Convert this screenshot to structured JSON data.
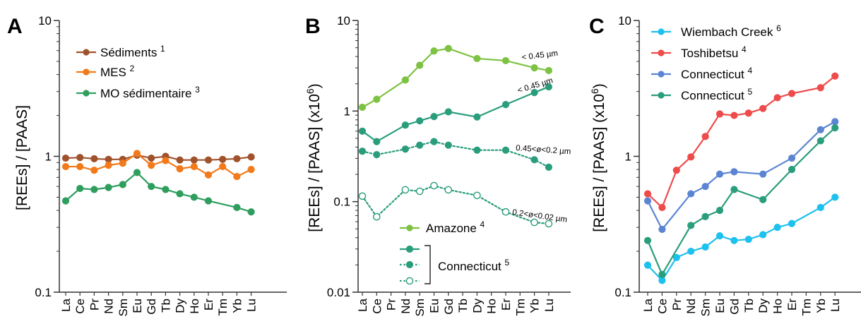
{
  "chart_data": [
    {
      "panel": "A",
      "type": "line",
      "ylabel": "[REEs] / [PAAS]",
      "yscale": "log",
      "ylim": [
        0.1,
        10
      ],
      "yticks": [
        "0.1",
        "1",
        "10"
      ],
      "categories": [
        "La",
        "Ce",
        "Pr",
        "Nd",
        "Sm",
        "Eu",
        "Gd",
        "Tb",
        "Dy",
        "Ho",
        "Er",
        "Tm",
        "Yb",
        "Lu"
      ],
      "legend_position": "top-left",
      "series": [
        {
          "name": "Sédiments",
          "sup": "1",
          "color": "#a0522d",
          "style": "solid-filled",
          "values": [
            0.97,
            0.98,
            0.96,
            0.95,
            0.95,
            1.02,
            0.97,
            1.0,
            0.94,
            0.94,
            0.94,
            0.95,
            0.96,
            0.99
          ]
        },
        {
          "name": "MES",
          "sup": "2",
          "color": "#f27a1a",
          "style": "solid-filled",
          "values": [
            0.84,
            0.84,
            0.79,
            0.86,
            0.89,
            1.05,
            0.86,
            0.93,
            0.81,
            0.84,
            0.73,
            0.84,
            0.71,
            0.8
          ]
        },
        {
          "name": "MO sédimentaire",
          "sup": "3",
          "color": "#2e9e5e",
          "style": "solid-filled",
          "values": [
            0.47,
            0.58,
            0.57,
            0.59,
            0.62,
            0.76,
            0.6,
            0.57,
            0.53,
            0.5,
            0.47,
            null,
            0.42,
            0.39
          ]
        }
      ]
    },
    {
      "panel": "B",
      "type": "line",
      "ylabel": "[REEs] / [PAAS] (x10",
      "ylabel_sup": "6",
      "ylabel_end": ")",
      "yscale": "log",
      "ylim": [
        0.01,
        10
      ],
      "yticks": [
        "0.01",
        "0.1",
        "1",
        "10"
      ],
      "categories": [
        "La",
        "Ce",
        "Pr",
        "Nd",
        "Sm",
        "Eu",
        "Gd",
        "Tb",
        "Dy",
        "Ho",
        "Er",
        "Tm",
        "Yb",
        "Lu"
      ],
      "series": [
        {
          "name": "Amazone",
          "sup": "4",
          "color": "#7dc242",
          "style": "solid-filled",
          "note": "< 0.45 µm",
          "values": [
            1.1,
            1.35,
            null,
            2.2,
            3.2,
            4.6,
            4.9,
            null,
            3.8,
            null,
            3.6,
            null,
            3.0,
            2.8
          ]
        },
        {
          "name": "Connecticut",
          "sup": "5",
          "color": "#2a9d7c",
          "style": "solid-filled",
          "note": "< 0.45 µm",
          "values": [
            0.6,
            0.46,
            null,
            0.7,
            0.78,
            0.87,
            0.98,
            null,
            0.86,
            null,
            1.18,
            null,
            1.6,
            1.85
          ]
        },
        {
          "name": "Connecticut",
          "sup": "5",
          "color": "#2a9d7c",
          "style": "dotted-filled",
          "note": "0.45<ø<0.2 µm",
          "values": [
            0.36,
            0.33,
            null,
            0.38,
            0.42,
            0.46,
            0.42,
            null,
            0.37,
            null,
            0.37,
            null,
            0.29,
            0.24
          ]
        },
        {
          "name": "Connecticut",
          "sup": "5",
          "color": "#2a9d7c",
          "style": "dotted-open",
          "note": "0.2<ø<0.02 µm",
          "values": [
            0.115,
            0.068,
            null,
            0.135,
            0.13,
            0.15,
            0.135,
            null,
            0.117,
            null,
            0.077,
            null,
            0.059,
            0.057
          ]
        }
      ],
      "legend": {
        "amazone": "Amazone",
        "amazone_sup": "4",
        "connecticut": "Connecticut",
        "connecticut_sup": "5"
      }
    },
    {
      "panel": "C",
      "type": "line",
      "ylabel": "[REEs] / [PAAS] (x10",
      "ylabel_sup": "6",
      "ylabel_end": ")",
      "yscale": "log",
      "ylim": [
        0.1,
        10
      ],
      "yticks": [
        "0.1",
        "1",
        "10"
      ],
      "categories": [
        "La",
        "Ce",
        "Pr",
        "Nd",
        "Sm",
        "Eu",
        "Gd",
        "Tb",
        "Dy",
        "Ho",
        "Er",
        "Tm",
        "Yb",
        "Lu"
      ],
      "legend_position": "top-left",
      "series": [
        {
          "name": "Wiembach Creek",
          "sup": "6",
          "color": "#1ec0ee",
          "style": "solid-filled",
          "values": [
            0.158,
            0.122,
            0.18,
            0.2,
            0.215,
            0.26,
            0.24,
            0.245,
            0.265,
            0.3,
            0.32,
            null,
            0.42,
            0.5
          ]
        },
        {
          "name": "Toshibetsu",
          "sup": "4",
          "color": "#ee4b4b",
          "style": "solid-filled",
          "values": [
            0.53,
            0.42,
            0.79,
            0.99,
            1.4,
            2.05,
            2.0,
            2.08,
            2.25,
            2.7,
            2.9,
            null,
            3.2,
            3.9
          ]
        },
        {
          "name": "Connecticut",
          "sup": "4",
          "color": "#5b85d3",
          "style": "solid-filled",
          "values": [
            0.47,
            0.29,
            null,
            0.53,
            0.6,
            0.74,
            0.77,
            null,
            0.74,
            null,
            0.97,
            null,
            1.57,
            1.8
          ]
        },
        {
          "name": "Connecticut",
          "sup": "5",
          "color": "#2a9d7c",
          "style": "solid-filled",
          "values": [
            0.24,
            0.135,
            null,
            0.31,
            0.36,
            0.4,
            0.57,
            null,
            0.48,
            null,
            0.8,
            null,
            1.3,
            1.62
          ]
        }
      ]
    }
  ],
  "panel_letters": [
    "A",
    "B",
    "C"
  ]
}
